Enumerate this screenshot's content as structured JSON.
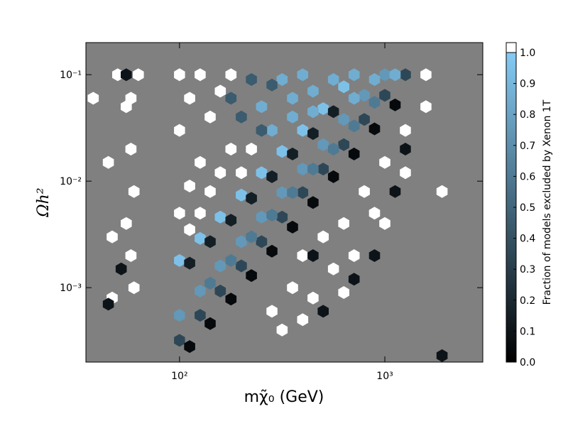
{
  "chart_data": {
    "type": "hexbin",
    "x_label": "mχ̃₀ (GeV)",
    "y_label": "Ωh²",
    "xscale": "log",
    "yscale": "log",
    "xlim": [
      35,
      3000
    ],
    "ylim": [
      0.0002,
      0.2
    ],
    "xticks": [
      {
        "value": 100,
        "label": "10²"
      },
      {
        "value": 1000,
        "label": "10³"
      }
    ],
    "yticks": [
      {
        "value": 0.001,
        "label": "10⁻³"
      },
      {
        "value": 0.01,
        "label": "10⁻²"
      },
      {
        "value": 0.1,
        "label": "10⁻¹"
      }
    ],
    "background": "#808080",
    "colormap": [
      "#000000",
      "#84cbf5"
    ],
    "over_color": "#ffffff",
    "colorbar": {
      "label": "Fraction of models excluded by Xenon 1T",
      "lim": [
        0,
        1
      ],
      "ticks": [
        {
          "value": 0,
          "label": "0.0"
        },
        0.1,
        0.2,
        0.3,
        0.4,
        0.5,
        0.6,
        0.7,
        0.8,
        0.9,
        {
          "value": 1,
          "label": "1.0"
        }
      ]
    },
    "x": [
      100,
      126,
      158,
      200,
      251,
      316,
      398,
      501,
      631,
      794,
      1000,
      1259,
      112,
      141,
      178,
      224,
      282,
      355,
      447,
      562,
      708,
      891,
      1122,
      100,
      126,
      158,
      200,
      251,
      316,
      398,
      501,
      631,
      794,
      1000,
      100,
      126,
      158,
      200,
      251,
      316,
      398,
      501,
      631,
      112,
      141,
      178,
      224,
      282,
      355,
      447,
      562,
      141,
      178,
      224,
      282,
      355,
      447,
      562,
      708,
      891,
      355,
      447,
      562,
      708,
      891,
      447,
      355,
      282,
      251,
      316,
      398,
      1122,
      708,
      282,
      224,
      251,
      200,
      178,
      100,
      112,
      126,
      100,
      112,
      126,
      141,
      158,
      178,
      200,
      141,
      158,
      224,
      100,
      178,
      126,
      112,
      398,
      501,
      631,
      794,
      1000,
      1259,
      355,
      447,
      562,
      708,
      891,
      282,
      398,
      631,
      1000,
      1585,
      1585,
      1259,
      316,
      501,
      708,
      447,
      891,
      1122,
      1259,
      50,
      55,
      58,
      60,
      55,
      58,
      60,
      47,
      47,
      45,
      58,
      63,
      45,
      52,
      55,
      38,
      1900,
      1900
    ],
    "y": [
      0.00032,
      0.00055,
      0.00093,
      0.0016,
      0.0027,
      0.0046,
      0.0078,
      0.013,
      0.022,
      0.038,
      0.064,
      0.1,
      0.00028,
      0.00046,
      0.00078,
      0.0013,
      0.0022,
      0.0037,
      0.0063,
      0.011,
      0.018,
      0.031,
      0.052,
      0.00055,
      0.00093,
      0.0016,
      0.0027,
      0.0046,
      0.0078,
      0.013,
      0.022,
      0.038,
      0.064,
      0.1,
      0.0018,
      0.0029,
      0.0046,
      0.0074,
      0.012,
      0.019,
      0.03,
      0.048,
      0.077,
      0.0017,
      0.0027,
      0.0043,
      0.0069,
      0.011,
      0.018,
      0.028,
      0.045,
      0.0011,
      0.0018,
      0.003,
      0.0048,
      0.0078,
      0.013,
      0.02,
      0.033,
      0.055,
      0.06,
      0.07,
      0.09,
      0.1,
      0.09,
      0.045,
      0.04,
      0.03,
      0.05,
      0.09,
      0.1,
      0.1,
      0.06,
      0.08,
      0.09,
      0.03,
      0.04,
      0.06,
      0.005,
      0.009,
      0.015,
      0.03,
      0.06,
      0.1,
      0.04,
      0.07,
      0.02,
      0.012,
      0.008,
      0.012,
      0.02,
      0.1,
      0.1,
      0.005,
      0.0035,
      0.002,
      0.003,
      0.004,
      0.008,
      0.015,
      0.03,
      0.001,
      0.0008,
      0.0015,
      0.002,
      0.005,
      0.0006,
      0.0005,
      0.0009,
      0.004,
      0.05,
      0.1,
      0.012,
      0.0004,
      0.0006,
      0.0012,
      0.002,
      0.002,
      0.008,
      0.02,
      0.1,
      0.05,
      0.02,
      0.008,
      0.004,
      0.002,
      0.001,
      0.0008,
      0.003,
      0.015,
      0.06,
      0.1,
      0.0007,
      0.0015,
      0.1,
      0.06,
      0.008,
      0.00023
    ],
    "values": [
      0.35,
      0.35,
      0.35,
      0.35,
      0.35,
      0.35,
      0.35,
      0.35,
      0.35,
      0.35,
      0.35,
      0.35,
      0.05,
      0.05,
      0.05,
      0.05,
      0.05,
      0.05,
      0.05,
      0.05,
      0.05,
      0.05,
      0.05,
      0.75,
      0.75,
      0.75,
      0.75,
      0.75,
      0.75,
      0.75,
      0.75,
      0.75,
      0.75,
      0.75,
      0.95,
      0.95,
      0.95,
      0.95,
      0.95,
      0.95,
      0.95,
      0.95,
      0.95,
      0.15,
      0.15,
      0.15,
      0.15,
      0.15,
      0.15,
      0.15,
      0.15,
      0.6,
      0.6,
      0.6,
      0.6,
      0.6,
      0.6,
      0.6,
      0.6,
      0.6,
      0.85,
      0.85,
      0.85,
      0.85,
      0.85,
      0.85,
      0.85,
      0.85,
      0.85,
      0.85,
      0.85,
      0.85,
      0.85,
      0.45,
      0.45,
      0.45,
      0.45,
      0.45,
      1,
      1,
      1,
      1,
      1,
      1,
      1,
      1,
      1,
      1,
      1,
      1,
      1,
      1,
      1,
      1,
      1,
      1,
      1,
      1,
      1,
      1,
      1,
      1,
      1,
      1,
      1,
      1,
      1,
      1,
      1,
      1,
      1,
      1,
      1,
      1,
      0.1,
      0.1,
      0.1,
      0.1,
      0.1,
      0.1,
      1,
      1,
      1,
      1,
      1,
      1,
      1,
      1,
      1,
      1,
      1,
      1,
      0.1,
      0.1,
      0.1,
      1,
      1,
      0.1
    ]
  }
}
